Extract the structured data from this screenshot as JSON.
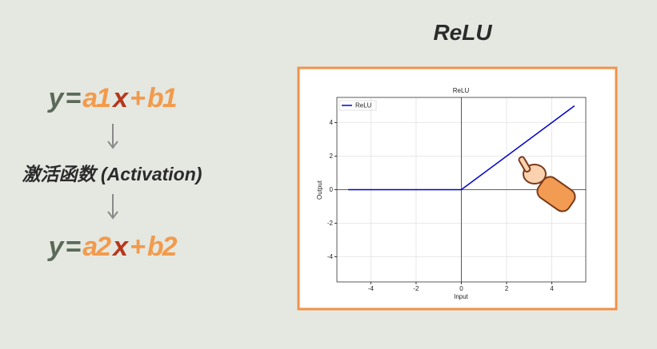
{
  "slide": {
    "title": "ReLU",
    "formula1": [
      "y",
      "=",
      "a1",
      "x",
      "+",
      "b1"
    ],
    "activation": "激活函数 (Activation)",
    "formula2": [
      "y",
      "=",
      "a2",
      "x",
      "+",
      "b2"
    ]
  },
  "chart_data": {
    "type": "line",
    "title": "ReLU",
    "x_label": "Input",
    "y_label": "Output",
    "x": [
      -5,
      0,
      5
    ],
    "series": [
      {
        "name": "ReLU",
        "color": "#0000cd",
        "values": [
          0,
          0,
          5
        ]
      }
    ],
    "xlim": [
      -5.5,
      5.5
    ],
    "ylim": [
      -5.5,
      5.5
    ],
    "xticks": [
      -4,
      -2,
      0,
      2,
      4
    ],
    "yticks": [
      -4,
      -2,
      0,
      2,
      4
    ],
    "grid": true,
    "legend": "upper left"
  }
}
